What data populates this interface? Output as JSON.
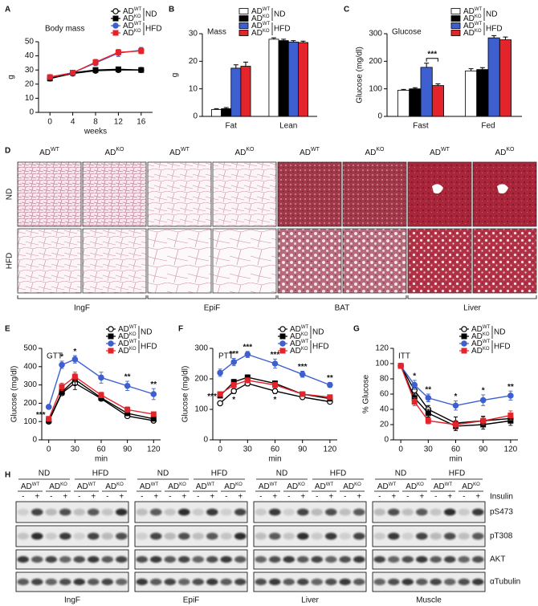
{
  "chart_data": [
    {
      "letter": "A",
      "type": "line",
      "title": "Body mass",
      "xlabel": "weeks",
      "ylabel": "g",
      "x": [
        0,
        4,
        8,
        12,
        16
      ],
      "xlim": [
        -2,
        18
      ],
      "xticks": [
        0,
        4,
        8,
        12,
        16
      ],
      "ylim": [
        0,
        50
      ],
      "yticks": [
        0,
        10,
        20,
        30,
        40,
        50
      ],
      "legend_groups": [
        "ND",
        "HFD"
      ],
      "series": [
        {
          "name": "AD",
          "sup": "WT",
          "color": "#000000",
          "fill": "#ffffff",
          "marker": "circle",
          "values": [
            24,
            27.5,
            29.5,
            30,
            30
          ],
          "errors": [
            1,
            1,
            1,
            1.2,
            1
          ]
        },
        {
          "name": "AD",
          "sup": "KO",
          "color": "#000000",
          "fill": "#000000",
          "marker": "square",
          "values": [
            24,
            28,
            30,
            30.5,
            30
          ],
          "errors": [
            1,
            1,
            1,
            1,
            1
          ]
        },
        {
          "name": "AD",
          "sup": "WT",
          "color": "#3d5fd0",
          "fill": "#3d5fd0",
          "marker": "circle",
          "values": [
            25,
            28,
            35,
            42,
            44
          ],
          "errors": [
            1,
            1,
            2,
            2.5,
            2
          ]
        },
        {
          "name": "AD",
          "sup": "KO",
          "color": "#e3242b",
          "fill": "#e3242b",
          "marker": "square",
          "values": [
            25,
            28,
            35.5,
            42.5,
            43.5
          ],
          "errors": [
            1,
            1,
            2,
            2,
            2
          ]
        }
      ]
    },
    {
      "letter": "B",
      "type": "bar",
      "title": "Mass",
      "ylabel": "g",
      "categories": [
        "Fat",
        "Lean"
      ],
      "ylim": [
        0,
        30
      ],
      "yticks": [
        0,
        10,
        20,
        30
      ],
      "legend_groups": [
        "ND",
        "HFD"
      ],
      "series": [
        {
          "name": "AD",
          "sup": "WT",
          "color": "#ffffff",
          "values": [
            2.5,
            28
          ],
          "errors": [
            0.3,
            0.5
          ]
        },
        {
          "name": "AD",
          "sup": "KO",
          "color": "#000000",
          "values": [
            2.8,
            27.5
          ],
          "errors": [
            0.4,
            0.5
          ]
        },
        {
          "name": "AD",
          "sup": "WT",
          "color": "#3d5fd0",
          "values": [
            17.5,
            27
          ],
          "errors": [
            1.2,
            0.5
          ]
        },
        {
          "name": "AD",
          "sup": "KO",
          "color": "#e3242b",
          "values": [
            18.2,
            26.8
          ],
          "errors": [
            1.5,
            0.5
          ]
        }
      ]
    },
    {
      "letter": "C",
      "type": "bar",
      "title": "Glucose",
      "ylabel": "Glucose (mg/dl)",
      "categories": [
        "Fast",
        "Fed"
      ],
      "ylim": [
        0,
        300
      ],
      "yticks": [
        0,
        100,
        200,
        300
      ],
      "legend_groups": [
        "ND",
        "HFD"
      ],
      "annotations": [
        {
          "text": "***",
          "category": "Fast"
        }
      ],
      "series": [
        {
          "name": "AD",
          "sup": "WT",
          "color": "#ffffff",
          "values": [
            95,
            165
          ],
          "errors": [
            3,
            8
          ]
        },
        {
          "name": "AD",
          "sup": "KO",
          "color": "#000000",
          "values": [
            100,
            170
          ],
          "errors": [
            4,
            7
          ]
        },
        {
          "name": "AD",
          "sup": "WT",
          "color": "#3d5fd0",
          "values": [
            178,
            285
          ],
          "errors": [
            15,
            8
          ]
        },
        {
          "name": "AD",
          "sup": "KO",
          "color": "#e3242b",
          "values": [
            112,
            278
          ],
          "errors": [
            6,
            10
          ]
        }
      ]
    },
    {
      "letter": "E",
      "type": "line",
      "title": "GTT",
      "xlabel": "min",
      "ylabel": "Glucose (mg/dl)",
      "x": [
        0,
        15,
        30,
        60,
        90,
        120
      ],
      "xlim": [
        -8,
        128
      ],
      "xticks": [
        0,
        30,
        60,
        90,
        120
      ],
      "ylim": [
        0,
        500
      ],
      "yticks": [
        0,
        100,
        200,
        300,
        400,
        500
      ],
      "legend_groups": [
        "ND",
        "HFD"
      ],
      "annotations": [
        {
          "text": "***",
          "x": 0
        },
        {
          "text": "*",
          "x": 15
        },
        {
          "text": "*",
          "x": 30
        },
        {
          "text": "**",
          "x": 90
        },
        {
          "text": "**",
          "x": 120
        }
      ],
      "series": [
        {
          "name": "AD",
          "sup": "WT",
          "color": "#000000",
          "fill": "#ffffff",
          "marker": "circle",
          "values": [
            100,
            255,
            310,
            225,
            130,
            105
          ],
          "errors": [
            8,
            12,
            35,
            12,
            10,
            8
          ]
        },
        {
          "name": "AD",
          "sup": "KO",
          "color": "#000000",
          "fill": "#000000",
          "marker": "square",
          "values": [
            105,
            260,
            330,
            230,
            145,
            115
          ],
          "errors": [
            8,
            12,
            30,
            12,
            12,
            8
          ]
        },
        {
          "name": "AD",
          "sup": "WT",
          "color": "#3d5fd0",
          "fill": "#3d5fd0",
          "marker": "circle",
          "values": [
            180,
            410,
            440,
            340,
            295,
            250
          ],
          "errors": [
            10,
            20,
            20,
            30,
            25,
            30
          ]
        },
        {
          "name": "AD",
          "sup": "KO",
          "color": "#e3242b",
          "fill": "#e3242b",
          "marker": "square",
          "values": [
            115,
            290,
            345,
            245,
            165,
            140
          ],
          "errors": [
            8,
            20,
            25,
            15,
            15,
            12
          ]
        }
      ]
    },
    {
      "letter": "F",
      "type": "line",
      "title": "PTT",
      "xlabel": "min",
      "ylabel": "Glucose (mg/dl)",
      "x": [
        0,
        15,
        30,
        60,
        90,
        120
      ],
      "xlim": [
        -8,
        128
      ],
      "xticks": [
        0,
        30,
        60,
        90,
        120
      ],
      "ylim": [
        0,
        300
      ],
      "yticks": [
        0,
        100,
        200,
        300
      ],
      "legend_groups": [
        "ND",
        "HFD"
      ],
      "annotations": [
        {
          "text": "***",
          "x": 0
        },
        {
          "text": "***",
          "x": 15
        },
        {
          "text": "***",
          "x": 30
        },
        {
          "text": "***",
          "x": 60
        },
        {
          "text": "***",
          "x": 90
        },
        {
          "text": "**",
          "x": 120
        },
        {
          "text": "*",
          "x": 15,
          "side": "below"
        },
        {
          "text": "*",
          "x": 60,
          "side": "below"
        }
      ],
      "series": [
        {
          "name": "AD",
          "sup": "WT",
          "color": "#000000",
          "fill": "#ffffff",
          "marker": "circle",
          "values": [
            120,
            160,
            185,
            160,
            140,
            125
          ],
          "errors": [
            6,
            8,
            8,
            8,
            6,
            6
          ]
        },
        {
          "name": "AD",
          "sup": "KO",
          "color": "#000000",
          "fill": "#000000",
          "marker": "square",
          "values": [
            145,
            190,
            205,
            185,
            150,
            135
          ],
          "errors": [
            6,
            8,
            8,
            8,
            6,
            6
          ]
        },
        {
          "name": "AD",
          "sup": "WT",
          "color": "#3d5fd0",
          "fill": "#3d5fd0",
          "marker": "circle",
          "values": [
            220,
            255,
            280,
            250,
            215,
            180
          ],
          "errors": [
            12,
            12,
            10,
            15,
            10,
            8
          ]
        },
        {
          "name": "AD",
          "sup": "KO",
          "color": "#e3242b",
          "fill": "#e3242b",
          "marker": "square",
          "values": [
            150,
            180,
            195,
            180,
            150,
            140
          ],
          "errors": [
            6,
            8,
            8,
            8,
            6,
            6
          ]
        }
      ]
    },
    {
      "letter": "G",
      "type": "line",
      "title": "ITT",
      "xlabel": "min",
      "ylabel": "% Glucose",
      "x": [
        0,
        15,
        30,
        60,
        90,
        120
      ],
      "xlim": [
        -8,
        128
      ],
      "xticks": [
        0,
        30,
        60,
        90,
        120
      ],
      "ylim": [
        0,
        120
      ],
      "yticks": [
        0,
        20,
        40,
        60,
        80,
        100,
        120
      ],
      "legend_groups": [
        "ND",
        "HFD"
      ],
      "annotations": [
        {
          "text": "*",
          "x": 15
        },
        {
          "text": "**",
          "x": 30
        },
        {
          "text": "*",
          "x": 60
        },
        {
          "text": "*",
          "x": 90
        },
        {
          "text": "**",
          "x": 120
        }
      ],
      "series": [
        {
          "name": "AD",
          "sup": "WT",
          "color": "#000000",
          "fill": "#ffffff",
          "marker": "circle",
          "values": [
            97,
            65,
            40,
            22,
            25,
            28
          ],
          "errors": [
            3,
            5,
            5,
            8,
            6,
            6
          ]
        },
        {
          "name": "AD",
          "sup": "KO",
          "color": "#000000",
          "fill": "#000000",
          "marker": "square",
          "values": [
            97,
            55,
            35,
            18,
            20,
            25
          ],
          "errors": [
            3,
            5,
            5,
            6,
            6,
            6
          ]
        },
        {
          "name": "AD",
          "sup": "WT",
          "color": "#3d5fd0",
          "fill": "#3d5fd0",
          "marker": "circle",
          "values": [
            97,
            72,
            55,
            45,
            52,
            58
          ],
          "errors": [
            3,
            6,
            5,
            6,
            7,
            6
          ]
        },
        {
          "name": "AD",
          "sup": "KO",
          "color": "#e3242b",
          "fill": "#e3242b",
          "marker": "square",
          "values": [
            97,
            50,
            25,
            20,
            25,
            32
          ],
          "errors": [
            3,
            5,
            4,
            5,
            5,
            6
          ]
        }
      ]
    }
  ],
  "histology": {
    "letter": "D",
    "tissues": [
      "IngF",
      "EpiF",
      "BAT",
      "Liver"
    ],
    "rows": [
      "ND",
      "HFD"
    ],
    "columns": [
      {
        "label": "AD",
        "sup": "WT"
      },
      {
        "label": "AD",
        "sup": "KO"
      }
    ]
  },
  "blots": {
    "letter": "H",
    "tissues": [
      "IngF",
      "EpiF",
      "Liver",
      "Muscle"
    ],
    "diets": [
      "ND",
      "HFD"
    ],
    "genotypes": [
      {
        "label": "AD",
        "sup": "WT"
      },
      {
        "label": "AD",
        "sup": "KO"
      }
    ],
    "insulin": [
      "-",
      "+"
    ],
    "insulin_label": "Insulin",
    "proteins": [
      "pS473",
      "pT308",
      "AKT",
      "αTubulin"
    ]
  }
}
